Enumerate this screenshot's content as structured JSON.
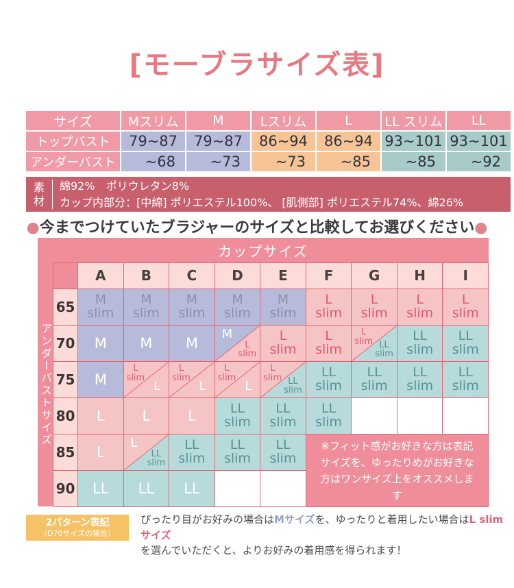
{
  "title": "[モーブラサイズ表]",
  "size_table": {
    "header": [
      "サイズ",
      "Mスリム",
      "M",
      "Lスリム",
      "L",
      "LL スリム",
      "LL"
    ],
    "cell_colors": [
      "purple",
      "purple",
      "orange",
      "orange",
      "teal",
      "teal"
    ],
    "rows": [
      {
        "label": "トップバスト",
        "values": [
          "79~87",
          "79~87",
          "86~94",
          "86~94",
          "93~101",
          "93~101"
        ]
      },
      {
        "label": "アンダーバスト",
        "values": [
          "~68",
          "~73",
          "~73",
          "~85",
          "~85",
          "~92"
        ]
      }
    ]
  },
  "material": {
    "label": "素\n材",
    "lines": [
      "綿92%　ポリウレタン8%",
      "カップ内部分：[中綿] ポリエステル100%、 [肌側部] ポリエステル74%、綿26%"
    ]
  },
  "compare_note": {
    "bullet": "●",
    "text": "今までつけていたブラジャーのサイズと比較してお選びください"
  },
  "matrix": {
    "top_header": "カップサイズ",
    "left_header": "アンダーバストサイズ",
    "col_headers": [
      "A",
      "B",
      "C",
      "D",
      "E",
      "F",
      "G",
      "H",
      "I"
    ],
    "row_headers": [
      "65",
      "70",
      "75",
      "80",
      "85",
      "90"
    ],
    "note": "※フィット感がお好きな方は表記サイズを、ゆったりめがお好きな方はワンサイズ上をオススメします",
    "colors": {
      "purple": "#b6bbdb",
      "pink": "#f5c5c6",
      "teal": "#b7dbdb",
      "white": "#ffffff",
      "line": "#e8626f",
      "band": "#ef8e9a"
    },
    "rows": [
      [
        {
          "t": "s",
          "text": "M\nslim",
          "bg": "purple",
          "color": "muted"
        },
        {
          "t": "s",
          "text": "M\nslim",
          "bg": "purple",
          "color": "muted"
        },
        {
          "t": "s",
          "text": "M\nslim",
          "bg": "purple",
          "color": "muted"
        },
        {
          "t": "s",
          "text": "M\nslim",
          "bg": "purple",
          "color": "muted"
        },
        {
          "t": "s",
          "text": "M\nslim",
          "bg": "purple",
          "color": "muted"
        },
        {
          "t": "s",
          "text": "L\nslim",
          "bg": "pink",
          "color": "red"
        },
        {
          "t": "s",
          "text": "L\nslim",
          "bg": "pink",
          "color": "red"
        },
        {
          "t": "s",
          "text": "L\nslim",
          "bg": "pink",
          "color": "red"
        },
        {
          "t": "s",
          "text": "L\nslim",
          "bg": "pink",
          "color": "red"
        }
      ],
      [
        {
          "t": "s",
          "text": "M",
          "bg": "purple",
          "color": "white",
          "big": true
        },
        {
          "t": "s",
          "text": "M",
          "bg": "purple",
          "color": "white",
          "big": true
        },
        {
          "t": "s",
          "text": "M",
          "bg": "purple",
          "color": "white",
          "big": true
        },
        {
          "t": "split",
          "tl": {
            "text": "M",
            "bg": "purple",
            "color": "white",
            "big": true
          },
          "br": {
            "text": "L\nslim",
            "bg": "pink",
            "color": "red"
          }
        },
        {
          "t": "s",
          "text": "L\nslim",
          "bg": "pink",
          "color": "red"
        },
        {
          "t": "s",
          "text": "L\nslim",
          "bg": "pink",
          "color": "red"
        },
        {
          "t": "split",
          "tl": {
            "text": "L\nslim",
            "bg": "pink",
            "color": "red"
          },
          "br": {
            "text": "LL\nslim",
            "bg": "teal",
            "color": "teal"
          }
        },
        {
          "t": "s",
          "text": "LL\nslim",
          "bg": "teal",
          "color": "teal"
        },
        {
          "t": "s",
          "text": "LL\nslim",
          "bg": "teal",
          "color": "teal"
        }
      ],
      [
        {
          "t": "s",
          "text": "M",
          "bg": "purple",
          "color": "white",
          "big": true
        },
        {
          "t": "split",
          "tl": {
            "text": "L\nslim",
            "bg": "pink",
            "color": "red"
          },
          "br": {
            "text": "L",
            "bg": "pink",
            "color": "white",
            "big": true
          }
        },
        {
          "t": "split",
          "tl": {
            "text": "L\nslim",
            "bg": "pink",
            "color": "red"
          },
          "br": {
            "text": "L",
            "bg": "pink",
            "color": "white",
            "big": true
          }
        },
        {
          "t": "split",
          "tl": {
            "text": "L\nslim",
            "bg": "pink",
            "color": "red"
          },
          "br": {
            "text": "L",
            "bg": "pink",
            "color": "white",
            "big": true
          }
        },
        {
          "t": "split",
          "tl": {
            "text": "L\nslim",
            "bg": "pink",
            "color": "red"
          },
          "br": {
            "text": "LL\nslim",
            "bg": "teal",
            "color": "teal"
          }
        },
        {
          "t": "s",
          "text": "LL\nslim",
          "bg": "teal",
          "color": "teal"
        },
        {
          "t": "s",
          "text": "LL\nslim",
          "bg": "teal",
          "color": "teal"
        },
        {
          "t": "s",
          "text": "LL\nslim",
          "bg": "teal",
          "color": "teal"
        },
        {
          "t": "s",
          "text": "LL\nslim",
          "bg": "teal",
          "color": "teal"
        }
      ],
      [
        {
          "t": "s",
          "text": "L",
          "bg": "pink",
          "color": "white",
          "big": true
        },
        {
          "t": "s",
          "text": "L",
          "bg": "pink",
          "color": "white",
          "big": true
        },
        {
          "t": "s",
          "text": "L",
          "bg": "pink",
          "color": "white",
          "big": true
        },
        {
          "t": "s",
          "text": "LL\nslim",
          "bg": "teal",
          "color": "teal"
        },
        {
          "t": "s",
          "text": "LL\nslim",
          "bg": "teal",
          "color": "teal"
        },
        {
          "t": "s",
          "text": "LL\nslim",
          "bg": "teal",
          "color": "teal"
        },
        {
          "t": "s",
          "text": "",
          "bg": "white",
          "color": "muted"
        },
        {
          "t": "s",
          "text": "",
          "bg": "white",
          "color": "muted"
        },
        {
          "t": "s",
          "text": "",
          "bg": "white",
          "color": "muted"
        }
      ],
      [
        {
          "t": "s",
          "text": "L",
          "bg": "pink",
          "color": "white",
          "big": true
        },
        {
          "t": "split",
          "tl": {
            "text": "L",
            "bg": "pink",
            "color": "white",
            "big": true
          },
          "br": {
            "text": "LL\nslim",
            "bg": "teal",
            "color": "teal"
          }
        },
        {
          "t": "s",
          "text": "LL\nslim",
          "bg": "teal",
          "color": "teal"
        },
        {
          "t": "s",
          "text": "LL\nslim",
          "bg": "teal",
          "color": "teal"
        },
        {
          "t": "s",
          "text": "LL\nslim",
          "bg": "teal",
          "color": "teal"
        },
        {
          "t": "note"
        },
        {
          "t": "skip"
        },
        {
          "t": "skip"
        },
        {
          "t": "skip"
        }
      ],
      [
        {
          "t": "s",
          "text": "LL",
          "bg": "teal",
          "color": "white",
          "big": true
        },
        {
          "t": "s",
          "text": "LL",
          "bg": "teal",
          "color": "white",
          "big": true
        },
        {
          "t": "s",
          "text": "LL",
          "bg": "teal",
          "color": "white",
          "big": true
        },
        {
          "t": "s",
          "text": "",
          "bg": "white",
          "color": "muted"
        },
        {
          "t": "s",
          "text": "",
          "bg": "white",
          "color": "muted"
        },
        {
          "t": "skip"
        },
        {
          "t": "skip"
        },
        {
          "t": "skip"
        },
        {
          "t": "skip"
        }
      ]
    ]
  },
  "legend": {
    "badge_title": "2パターン表記",
    "badge_sub": "（D70サイズの場合）",
    "text_parts": [
      {
        "text": "ぴったり目がお好みの場合は",
        "color": "default"
      },
      {
        "text": "Mサイズ",
        "color": "blue"
      },
      {
        "text": "を、ゆったりと着用したい場合は",
        "color": "default"
      },
      {
        "text": "L slimサイズ",
        "color": "pink",
        "break_after": true
      },
      {
        "text": "を選んでいただくと、よりお好みの着用感を得られます！",
        "color": "default"
      }
    ]
  }
}
